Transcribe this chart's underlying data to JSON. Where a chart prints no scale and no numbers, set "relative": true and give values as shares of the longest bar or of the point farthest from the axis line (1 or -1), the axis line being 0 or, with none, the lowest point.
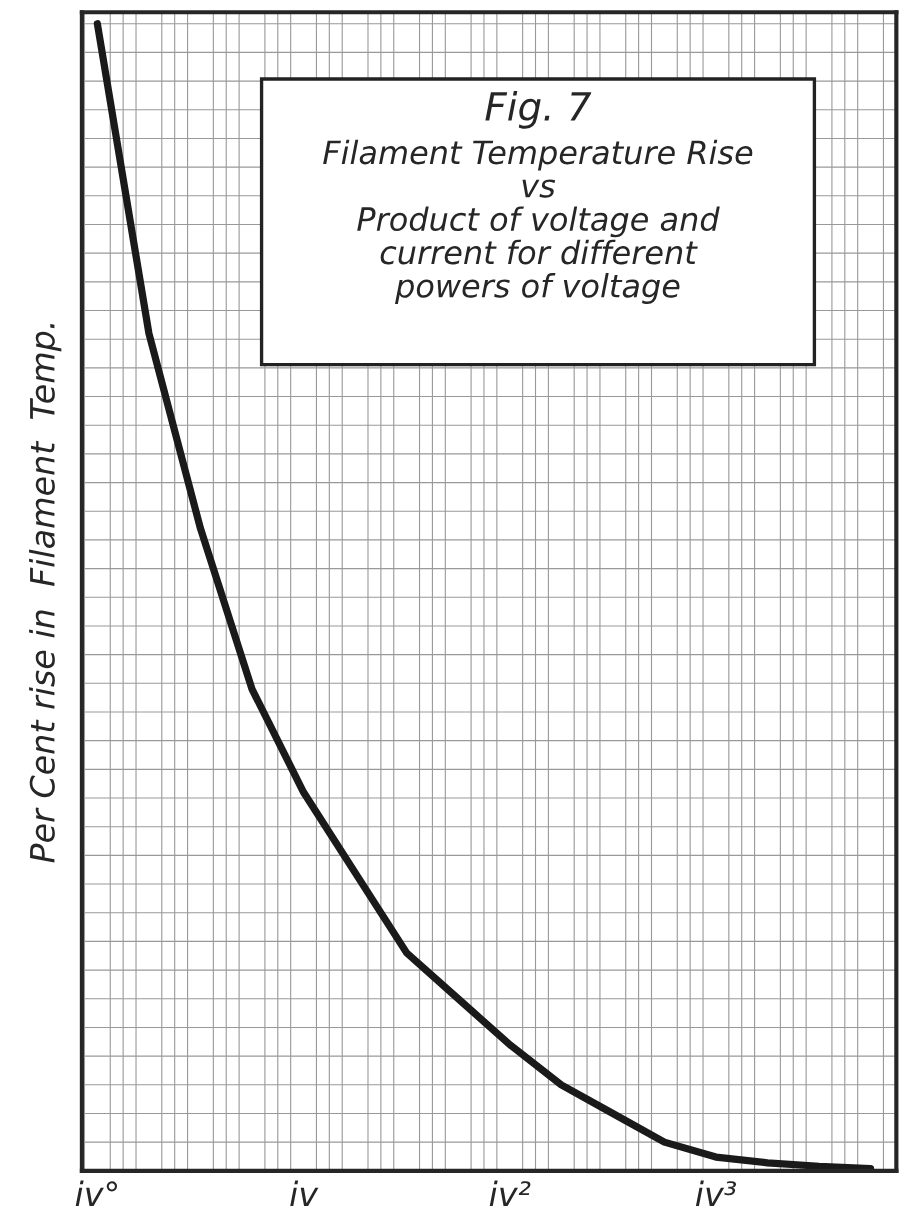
{
  "chart_data": {
    "type": "line",
    "relative": true,
    "title": "Filament Temperature Rise\nvs\nProduct of voltage and\ncurrent for different\npowers of voltage",
    "annotations": [
      "Fig. 7"
    ],
    "ylabel": "Per Cent rise in  Filament  Temp.",
    "categories": [
      "iv°",
      null,
      null,
      null,
      "iv",
      null,
      null,
      null,
      "iv²",
      null,
      null,
      null,
      "iv³",
      null,
      null,
      null
    ],
    "series": [
      {
        "color": "#1a1a1a",
        "values": [
          1.0,
          0.73,
          0.56,
          0.42,
          0.33,
          0.26,
          0.19,
          0.15,
          0.11,
          0.075,
          0.05,
          0.025,
          0.012,
          0.007,
          0.004,
          0.002
        ]
      }
    ],
    "grid": true,
    "legend": false
  }
}
